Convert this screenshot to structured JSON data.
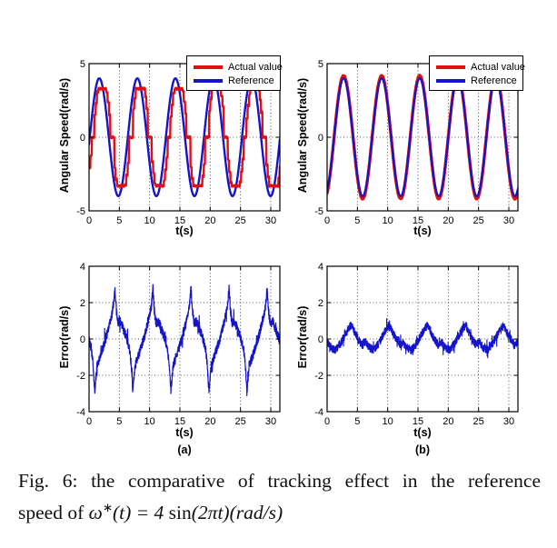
{
  "caption": {
    "line1": "Fig. 6: the comparative of tracking effect in the reference",
    "line2_prefix": "speed of ",
    "formula": {
      "omega": "ω",
      "star": "∗",
      "mid": "(t) = 4 ",
      "sin": "sin",
      "tail": "(2πt)(rad/s)"
    }
  },
  "colors": {
    "actual_red": "#e01010",
    "reference_blue": "#1414cc",
    "axis_black": "#000000"
  },
  "chart_data": [
    {
      "id": "a-speed",
      "type": "line",
      "title": "",
      "xlabel": "t(s)",
      "ylabel": "Angular Speed(rad/s)",
      "xlim": [
        0,
        31.5
      ],
      "ylim": [
        -5,
        5
      ],
      "xticks": [
        0,
        5,
        10,
        15,
        20,
        25,
        30
      ],
      "yticks": [
        -5,
        0,
        5
      ],
      "grid": true,
      "legend": {
        "position": "top-right",
        "entries": [
          {
            "label": "Actual value",
            "color": "#e01010"
          },
          {
            "label": "Reference",
            "color": "#1414cc"
          }
        ]
      },
      "series": [
        {
          "name": "Reference",
          "color": "#1414cc",
          "width": 2.4,
          "generator": {
            "kind": "sine",
            "amplitude": 4,
            "period": 6.283,
            "phase": 0.12,
            "noise": 0,
            "dt": 0.02,
            "seed": 3
          }
        },
        {
          "name": "Actual value",
          "color": "#e01010",
          "width": 2.4,
          "generator": {
            "kind": "deadzone_sine",
            "amplitude": 4.25,
            "period": 6.283,
            "phase": 0.52,
            "deadzone": 1.25,
            "clamp": 3.3,
            "hold": 0.22,
            "noise": 0.14,
            "dt": 0.04,
            "seed": 11
          }
        }
      ]
    },
    {
      "id": "b-speed",
      "type": "line",
      "title": "",
      "xlabel": "t(s)",
      "ylabel": "Angular Speed(rad/s)",
      "xlim": [
        0,
        31.5
      ],
      "ylim": [
        -5,
        5
      ],
      "xticks": [
        0,
        5,
        10,
        15,
        20,
        25,
        30
      ],
      "yticks": [
        -5,
        0,
        5
      ],
      "grid": true,
      "legend": {
        "position": "top-right",
        "entries": [
          {
            "label": "Actual value",
            "color": "#e01010"
          },
          {
            "label": "Reference",
            "color": "#1414cc"
          }
        ]
      },
      "series": [
        {
          "name": "Actual value",
          "color": "#e01010",
          "width": 3.4,
          "generator": {
            "kind": "sine",
            "amplitude": 4.16,
            "period": 6.283,
            "phase": 1.15,
            "noise": 0.09,
            "dt": 0.02,
            "seed": 21
          }
        },
        {
          "name": "Reference",
          "color": "#1414cc",
          "width": 2.2,
          "generator": {
            "kind": "sine",
            "amplitude": 4,
            "period": 6.283,
            "phase": 1.15,
            "noise": 0.02,
            "dt": 0.02,
            "seed": 22
          }
        }
      ]
    },
    {
      "id": "a-error",
      "type": "line",
      "title": "",
      "xlabel": "t(s)",
      "ylabel": "Error(rad/s)",
      "sublabel": "(a)",
      "xlim": [
        0,
        31.5
      ],
      "ylim": [
        -4,
        4
      ],
      "xticks": [
        0,
        5,
        10,
        15,
        20,
        25,
        30
      ],
      "yticks": [
        -4,
        -2,
        0,
        2,
        4
      ],
      "grid": true,
      "series": [
        {
          "name": "Error",
          "color": "#1414cc",
          "width": 1.2,
          "generator": {
            "kind": "keypoints",
            "period": 6.283,
            "offset": 0.94,
            "keypoints": [
              [
                0,
                -2.9
              ],
              [
                0.35,
                -1.5
              ],
              [
                1.1,
                -0.75
              ],
              [
                1.9,
                0.1
              ],
              [
                2.5,
                0.9
              ],
              [
                3.05,
                1.75
              ],
              [
                3.32,
                2.8
              ],
              [
                3.55,
                1.6
              ],
              [
                3.8,
                0.9
              ],
              [
                4.3,
                0.95
              ],
              [
                4.75,
                0.5
              ],
              [
                5.2,
                0.12
              ],
              [
                5.7,
                -0.5
              ],
              [
                6.0,
                -1.35
              ],
              [
                6.283,
                -2.9
              ]
            ],
            "noise": 0.5,
            "spike_prob": 0.05,
            "spike_mag": 0.55,
            "dt": 0.02,
            "seed": 31
          }
        }
      ]
    },
    {
      "id": "b-error",
      "type": "line",
      "title": "",
      "xlabel": "t(s)",
      "ylabel": "Error(rad/s)",
      "sublabel": "(b)",
      "xlim": [
        0,
        31.5
      ],
      "ylim": [
        -4,
        4
      ],
      "xticks": [
        0,
        5,
        10,
        15,
        20,
        25,
        30
      ],
      "yticks": [
        -4,
        -2,
        0,
        2,
        4
      ],
      "grid": true,
      "series": [
        {
          "name": "Error",
          "color": "#1414cc",
          "width": 1.1,
          "generator": {
            "kind": "keypoints",
            "period": 6.283,
            "offset": 0,
            "keypoints": [
              [
                0,
                -0.15
              ],
              [
                0.6,
                -0.45
              ],
              [
                1.3,
                -0.62
              ],
              [
                2.2,
                -0.25
              ],
              [
                3.0,
                0.25
              ],
              [
                3.6,
                0.6
              ],
              [
                4.05,
                0.78
              ],
              [
                4.6,
                0.3
              ],
              [
                5.15,
                0.0
              ],
              [
                5.75,
                -0.32
              ],
              [
                6.283,
                -0.15
              ]
            ],
            "noise": 0.45,
            "spike_prob": 0.07,
            "spike_mag": 0.4,
            "dt": 0.02,
            "seed": 41
          }
        }
      ]
    }
  ]
}
